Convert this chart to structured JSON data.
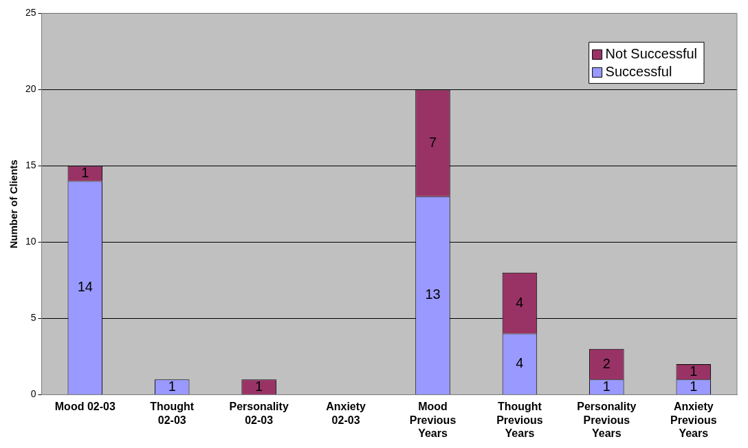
{
  "chart_data": {
    "type": "bar",
    "stacked": true,
    "ylabel": "Number of Clients",
    "categories": [
      "Mood 02-03",
      "Thought 02-03",
      "Personality 02-03",
      "Anxiety 02-03",
      "Mood Previous Years",
      "Thought Previous Years",
      "Personality Previous Years",
      "Anxiety Previous Years"
    ],
    "series": [
      {
        "name": "Successful",
        "color": "#9999ff",
        "values": [
          14,
          1,
          0,
          0,
          13,
          4,
          1,
          1
        ],
        "value_labels": [
          "14",
          "1",
          null,
          null,
          "13",
          "4",
          "1",
          "1"
        ]
      },
      {
        "name": "Not Successful",
        "color": "#993366",
        "values": [
          1,
          0,
          1,
          0,
          7,
          4,
          2,
          1
        ],
        "value_labels": [
          "1",
          null,
          "1",
          null,
          "7",
          "4",
          "2",
          "1"
        ]
      }
    ],
    "ylim": [
      0,
      25
    ],
    "yticks": [
      0,
      5,
      10,
      15,
      20,
      25
    ],
    "grid": "y",
    "legend": "top right"
  }
}
